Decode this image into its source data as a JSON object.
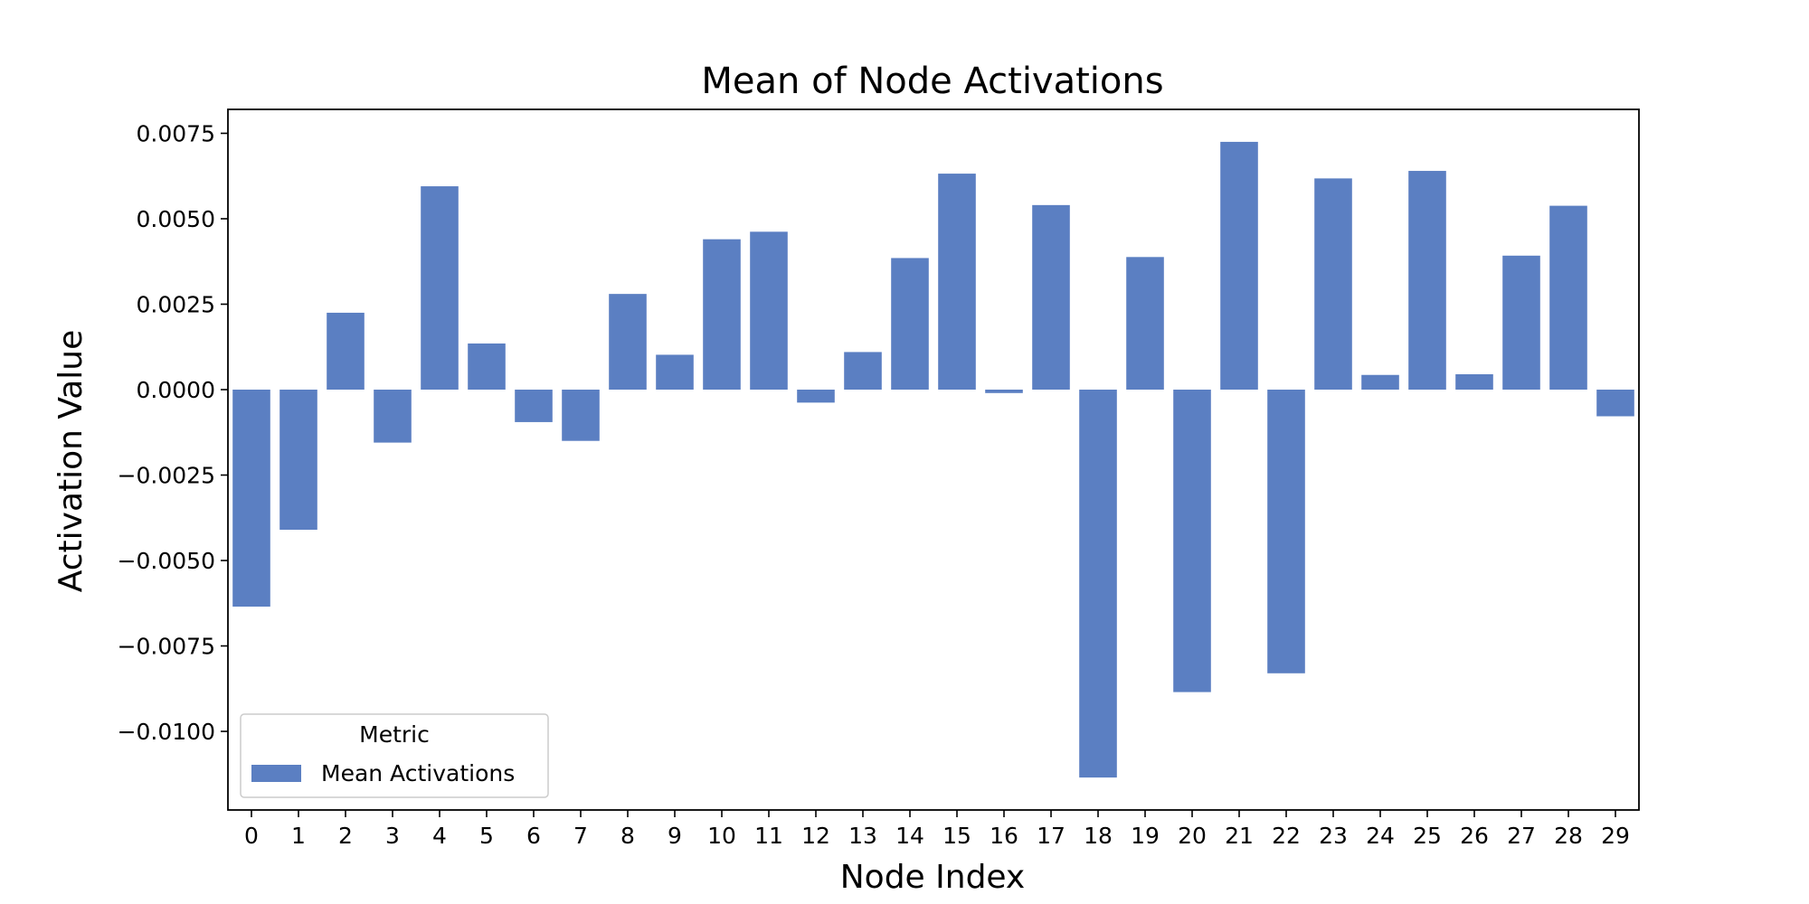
{
  "colors": {
    "bar": "#5b7fc2",
    "axis": "#000000",
    "background": "#ffffff"
  },
  "chart_data": {
    "type": "bar",
    "title": "Mean of Node Activations",
    "xlabel": "Node Index",
    "ylabel": "Activation Value",
    "categories": [
      "0",
      "1",
      "2",
      "3",
      "4",
      "5",
      "6",
      "7",
      "8",
      "9",
      "10",
      "11",
      "12",
      "13",
      "14",
      "15",
      "16",
      "17",
      "18",
      "19",
      "20",
      "21",
      "22",
      "23",
      "24",
      "25",
      "26",
      "27",
      "28",
      "29"
    ],
    "series": [
      {
        "name": "Mean Activations",
        "values": [
          -0.00635,
          -0.0041,
          0.00225,
          -0.00155,
          0.00595,
          0.00135,
          -0.00095,
          -0.0015,
          0.0028,
          0.00102,
          0.0044,
          0.00462,
          -0.00038,
          0.0011,
          0.00385,
          0.00632,
          -0.0001,
          0.0054,
          -0.01135,
          0.00388,
          -0.00885,
          0.00725,
          -0.0083,
          0.00618,
          0.00043,
          0.0064,
          0.00045,
          0.00392,
          0.00538,
          -0.00078
        ]
      }
    ],
    "ylim": [
      -0.0123,
      0.0082
    ],
    "yticks": [
      0.0075,
      0.005,
      0.0025,
      0.0,
      -0.0025,
      -0.005,
      -0.0075,
      -0.01
    ],
    "ytick_labels": [
      "0.0075",
      "0.0050",
      "0.0025",
      "0.0000",
      "−0.0025",
      "−0.0050",
      "−0.0075",
      "−0.0100"
    ],
    "legend": {
      "title": "Metric",
      "placement": "lower-left"
    },
    "grid": false
  }
}
